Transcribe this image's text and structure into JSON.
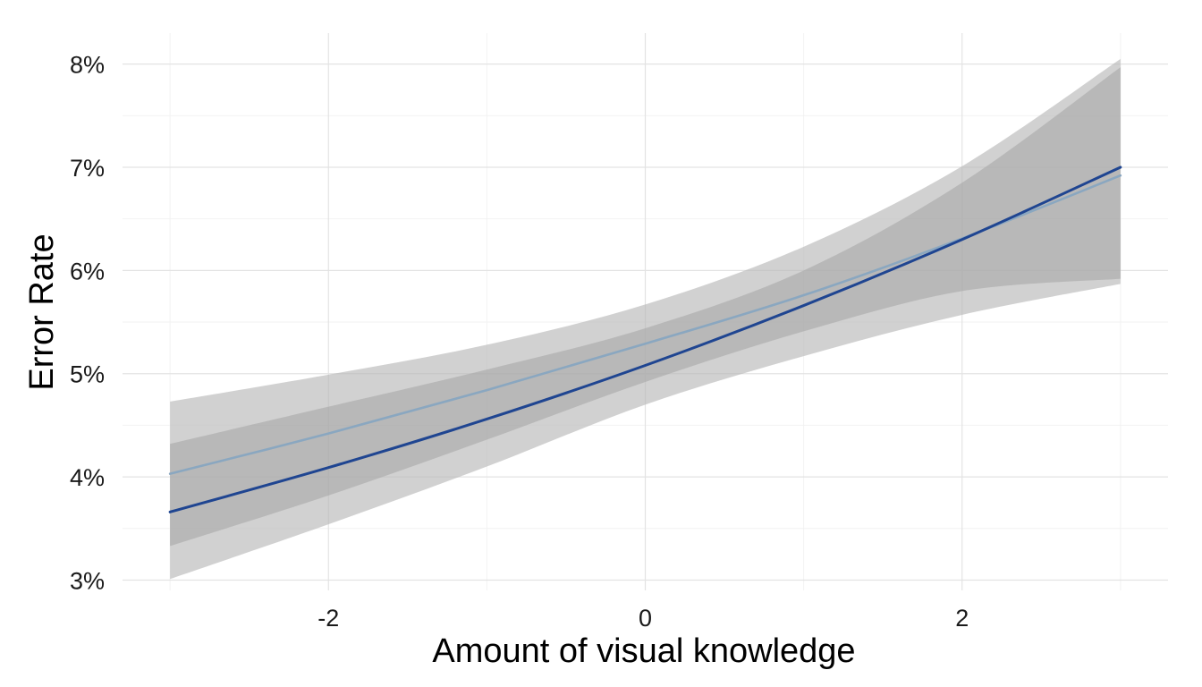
{
  "chart_data": {
    "type": "line",
    "title": "",
    "xlabel": "Amount of visual knowledge",
    "ylabel": "Error Rate",
    "xlim": [
      -3.3,
      3.3
    ],
    "ylim": [
      2.9,
      8.3
    ],
    "x_ticks": [
      -2,
      0,
      2
    ],
    "x_tick_labels": [
      "-2",
      "0",
      "2"
    ],
    "y_ticks": [
      3,
      4,
      5,
      6,
      7,
      8
    ],
    "y_tick_labels": [
      "3%",
      "4%",
      "5%",
      "6%",
      "7%",
      "8%"
    ],
    "grid": true,
    "legend": "none",
    "series": [
      {
        "color": "#1f4591",
        "x": [
          -3,
          -2,
          -1,
          0,
          1,
          2,
          3
        ],
        "y": [
          3.66,
          4.09,
          4.56,
          5.08,
          5.66,
          6.3,
          7.0
        ],
        "band": {
          "color": "#a6a6a6",
          "opacity": 0.6,
          "lower": [
            3.33,
            3.82,
            4.36,
            4.92,
            5.41,
            5.8,
            5.92
          ],
          "upper": [
            4.32,
            4.68,
            5.04,
            5.44,
            6.0,
            6.85,
            7.97
          ]
        }
      },
      {
        "color": "#8aa7c0",
        "x": [
          -3,
          -2,
          -1,
          0,
          1,
          2,
          3
        ],
        "y": [
          4.03,
          4.42,
          4.84,
          5.29,
          5.76,
          6.31,
          6.92
        ],
        "band": {
          "color": "#b8b8b8",
          "opacity": 0.65,
          "lower": [
            3.01,
            3.54,
            4.1,
            4.7,
            5.17,
            5.57,
            5.87
          ],
          "upper": [
            4.73,
            4.99,
            5.28,
            5.67,
            6.23,
            7.01,
            8.05
          ]
        }
      }
    ]
  }
}
